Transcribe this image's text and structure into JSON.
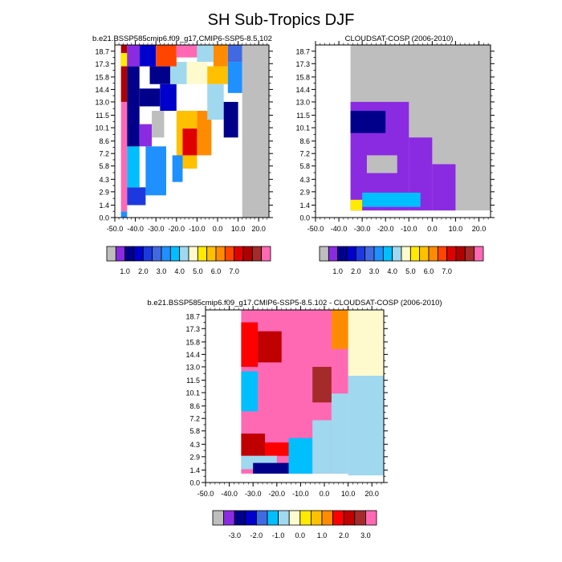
{
  "title": "SH Sub-Tropics DJF",
  "colors": {
    "missing": "#bebebe",
    "frame": "#000000",
    "seq_palette": [
      "#bebebe",
      "#8a2be2",
      "#00008b",
      "#0000cd",
      "#1c39e0",
      "#4169e1",
      "#1e90ff",
      "#00bfff",
      "#a0d8ef",
      "#fffacd",
      "#ffea00",
      "#ffc000",
      "#ff8c00",
      "#ff4500",
      "#e00000",
      "#b00000",
      "#a52a2a",
      "#ff69b4"
    ],
    "diff_palette": [
      "#bebebe",
      "#8a2be2",
      "#00008b",
      "#0000cd",
      "#4169e1",
      "#00bfff",
      "#a0d8ef",
      "#fffacd",
      "#ffea00",
      "#ffc000",
      "#ff8c00",
      "#ff0000",
      "#c00000",
      "#a52a2a",
      "#ff69b4"
    ]
  },
  "chart_data": [
    {
      "type": "heatmap",
      "title": "b.e21.BSSP585cmip6.f09_g17.CMIP6-SSP5-8.5.102",
      "x_ticks": [
        "-50.0",
        "-40.0",
        "-30.0",
        "-20.0",
        "-10.0",
        "0.0",
        "10.0",
        "20.0"
      ],
      "xlim": [
        -50,
        25
      ],
      "y_ticks": [
        "0.0",
        "1.4",
        "2.9",
        "4.3",
        "5.8",
        "7.2",
        "8.6",
        "10.1",
        "11.5",
        "13.0",
        "14.4",
        "15.8",
        "17.3",
        "18.7"
      ],
      "ylim": [
        0,
        19.4
      ],
      "colorbar_labels": [
        "1.0",
        "2.0",
        "3.0",
        "4.0",
        "5.0",
        "6.0",
        "7.0"
      ],
      "grid": false,
      "cells": [
        {
          "x": [
            -47,
            -44
          ],
          "y": [
            0,
            0.7
          ],
          "c": 6
        },
        {
          "x": [
            -47,
            -44
          ],
          "y": [
            0.7,
            13
          ],
          "c": 17
        },
        {
          "x": [
            -47,
            -44
          ],
          "y": [
            13,
            19.4
          ],
          "c": 15
        },
        {
          "x": [
            -47,
            -44
          ],
          "y": [
            17,
            18.5
          ],
          "c": 10
        },
        {
          "x": [
            -44,
            -35
          ],
          "y": [
            1.4,
            3.4
          ],
          "c": 4
        },
        {
          "x": [
            -44,
            -38
          ],
          "y": [
            3.4,
            8
          ],
          "c": 7
        },
        {
          "x": [
            -35,
            -25
          ],
          "y": [
            2.5,
            8
          ],
          "c": 6
        },
        {
          "x": [
            -44,
            -38
          ],
          "y": [
            8,
            17
          ],
          "c": 2
        },
        {
          "x": [
            -38,
            -32
          ],
          "y": [
            8,
            10.5
          ],
          "c": 1
        },
        {
          "x": [
            -38,
            -28
          ],
          "y": [
            12.5,
            14.5
          ],
          "c": 2
        },
        {
          "x": [
            -28,
            -20
          ],
          "y": [
            12,
            15
          ],
          "c": 3
        },
        {
          "x": [
            -33,
            -23
          ],
          "y": [
            15,
            17
          ],
          "c": 2
        },
        {
          "x": [
            -23,
            -15
          ],
          "y": [
            15,
            17.5
          ],
          "c": 8
        },
        {
          "x": [
            -15,
            -5
          ],
          "y": [
            15,
            17.5
          ],
          "c": 9
        },
        {
          "x": [
            -5,
            5
          ],
          "y": [
            15,
            17
          ],
          "c": 11
        },
        {
          "x": [
            5,
            12
          ],
          "y": [
            14,
            17.5
          ],
          "c": 6
        },
        {
          "x": [
            -20,
            -10
          ],
          "y": [
            5.5,
            12
          ],
          "c": 11
        },
        {
          "x": [
            -17,
            -10
          ],
          "y": [
            7,
            10
          ],
          "c": 14
        },
        {
          "x": [
            -10,
            -3
          ],
          "y": [
            7,
            12
          ],
          "c": 12
        },
        {
          "x": [
            -5,
            3
          ],
          "y": [
            11,
            15
          ],
          "c": 8
        },
        {
          "x": [
            -22,
            -17
          ],
          "y": [
            4,
            7
          ],
          "c": 6
        },
        {
          "x": [
            3,
            10
          ],
          "y": [
            9,
            13
          ],
          "c": 2
        },
        {
          "x": [
            -44,
            -38
          ],
          "y": [
            17,
            19.4
          ],
          "c": 1
        },
        {
          "x": [
            -38,
            -30
          ],
          "y": [
            17,
            19.4
          ],
          "c": 3
        },
        {
          "x": [
            -30,
            -20
          ],
          "y": [
            17,
            19.4
          ],
          "c": 13
        },
        {
          "x": [
            -20,
            -10
          ],
          "y": [
            18,
            19.4
          ],
          "c": 17
        },
        {
          "x": [
            -10,
            -2
          ],
          "y": [
            17.5,
            19.4
          ],
          "c": 8
        },
        {
          "x": [
            -2,
            5
          ],
          "y": [
            17,
            19.4
          ],
          "c": 12
        },
        {
          "x": [
            5,
            12
          ],
          "y": [
            17.5,
            19.4
          ],
          "c": 5
        },
        {
          "x": [
            12,
            25
          ],
          "y": [
            0,
            19.4
          ],
          "c": 0
        },
        {
          "x": [
            -32,
            -26
          ],
          "y": [
            9,
            12
          ],
          "c": 0
        }
      ]
    },
    {
      "type": "heatmap",
      "title": "CLOUDSAT-COSP (2006-2010)",
      "x_ticks": [
        "-50.0",
        "-40.0",
        "-30.0",
        "-20.0",
        "-10.0",
        "0.0",
        "10.0",
        "20.0"
      ],
      "xlim": [
        -50,
        25
      ],
      "y_ticks": [
        "0.0",
        "1.4",
        "2.9",
        "4.3",
        "5.8",
        "7.2",
        "8.6",
        "10.1",
        "11.5",
        "13.0",
        "14.4",
        "15.8",
        "17.3",
        "18.7"
      ],
      "ylim": [
        0,
        19.4
      ],
      "colorbar_labels": [
        "1.0",
        "2.0",
        "3.0",
        "4.0",
        "5.0",
        "6.0",
        "7.0"
      ],
      "grid": false,
      "cells": [
        {
          "x": [
            -35,
            25
          ],
          "y": [
            0.8,
            19.4
          ],
          "c": 0
        },
        {
          "x": [
            -35,
            -10
          ],
          "y": [
            0.8,
            13
          ],
          "c": 1
        },
        {
          "x": [
            -10,
            0
          ],
          "y": [
            0.8,
            9
          ],
          "c": 1
        },
        {
          "x": [
            0,
            10
          ],
          "y": [
            0.8,
            6
          ],
          "c": 1
        },
        {
          "x": [
            -35,
            -20
          ],
          "y": [
            9.5,
            12
          ],
          "c": 2
        },
        {
          "x": [
            -28,
            -15
          ],
          "y": [
            5,
            7
          ],
          "c": 0
        },
        {
          "x": [
            -30,
            -5
          ],
          "y": [
            1.2,
            2.8
          ],
          "c": 7
        },
        {
          "x": [
            -35,
            -30
          ],
          "y": [
            0.8,
            2
          ],
          "c": 10
        }
      ]
    },
    {
      "type": "heatmap",
      "title": "b.e21.BSSP585cmip6.f09_g17.CMIP6-SSP5-8.5.102 - CLOUDSAT-COSP (2006-2010)",
      "x_ticks": [
        "-50.0",
        "-40.0",
        "-30.0",
        "-20.0",
        "-10.0",
        "0.0",
        "10.0",
        "20.0"
      ],
      "xlim": [
        -50,
        25
      ],
      "y_ticks": [
        "0.0",
        "1.4",
        "2.9",
        "4.3",
        "5.8",
        "7.2",
        "8.6",
        "10.1",
        "11.5",
        "13.0",
        "14.4",
        "15.8",
        "17.3",
        "18.7"
      ],
      "ylim": [
        0,
        19.4
      ],
      "colorbar_labels": [
        "-3.0",
        "-2.0",
        "-1.0",
        "0.0",
        "1.0",
        "2.0",
        "3.0"
      ],
      "grid": false,
      "cells": [
        {
          "x": [
            -35,
            10
          ],
          "y": [
            1,
            19.4
          ],
          "c": 14
        },
        {
          "x": [
            -35,
            -28
          ],
          "y": [
            13,
            18
          ],
          "c": 11
        },
        {
          "x": [
            -28,
            -18
          ],
          "y": [
            13.5,
            17
          ],
          "c": 12
        },
        {
          "x": [
            -35,
            -28
          ],
          "y": [
            8,
            12.5
          ],
          "c": 5
        },
        {
          "x": [
            -35,
            -25
          ],
          "y": [
            3,
            5.5
          ],
          "c": 12
        },
        {
          "x": [
            -25,
            -15
          ],
          "y": [
            3,
            4.5
          ],
          "c": 11
        },
        {
          "x": [
            -35,
            -20
          ],
          "y": [
            1.5,
            3
          ],
          "c": 6
        },
        {
          "x": [
            -30,
            -15
          ],
          "y": [
            1,
            2.2
          ],
          "c": 2
        },
        {
          "x": [
            -15,
            -5
          ],
          "y": [
            1,
            5
          ],
          "c": 5
        },
        {
          "x": [
            -5,
            3
          ],
          "y": [
            1,
            7
          ],
          "c": 6
        },
        {
          "x": [
            3,
            10
          ],
          "y": [
            1,
            10
          ],
          "c": 6
        },
        {
          "x": [
            10,
            25
          ],
          "y": [
            0.8,
            19.4
          ],
          "c": 6
        },
        {
          "x": [
            10,
            25
          ],
          "y": [
            12,
            19.4
          ],
          "c": 7
        },
        {
          "x": [
            3,
            10
          ],
          "y": [
            15,
            19.4
          ],
          "c": 10
        },
        {
          "x": [
            -5,
            3
          ],
          "y": [
            9,
            13
          ],
          "c": 13
        }
      ]
    }
  ]
}
